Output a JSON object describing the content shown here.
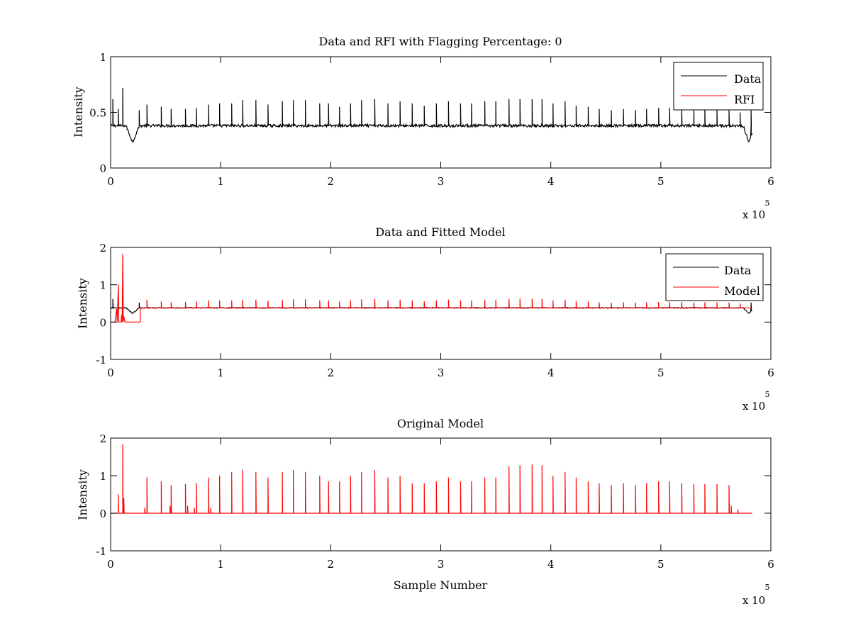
{
  "chart_data": [
    {
      "type": "line",
      "title": "Data and RFI with Flagging Percentage: 0",
      "xlabel": "",
      "ylabel": "Intensity",
      "xlim": [
        0,
        6
      ],
      "ylim": [
        0,
        1
      ],
      "x_multiplier": {
        "base": "x 10",
        "exponent": "5"
      },
      "xticks": [
        "0",
        "1",
        "2",
        "3",
        "4",
        "5",
        "6"
      ],
      "yticks": [
        "0",
        "0.5",
        "1"
      ],
      "legend": {
        "position": "top-right",
        "entries": [
          "Data",
          "RFI"
        ]
      },
      "series": [
        {
          "name": "Data",
          "color": "#000000",
          "baseline": 0.38,
          "x_end": 5.83,
          "dips": [
            {
              "x": 0.2,
              "depth": 0.23,
              "width": 0.06
            },
            {
              "x": 5.8,
              "depth": 0.23,
              "width": 0.05
            }
          ],
          "spikes": [
            {
              "x": 0.02,
              "y": 0.62
            },
            {
              "x": 0.07,
              "y": 0.53
            },
            {
              "x": 0.11,
              "y": 0.72
            },
            {
              "x": 0.26,
              "y": 0.52
            },
            {
              "x": 0.33,
              "y": 0.57
            },
            {
              "x": 0.46,
              "y": 0.55
            },
            {
              "x": 0.55,
              "y": 0.53
            },
            {
              "x": 0.68,
              "y": 0.53
            },
            {
              "x": 0.78,
              "y": 0.54
            },
            {
              "x": 0.89,
              "y": 0.57
            },
            {
              "x": 0.99,
              "y": 0.58
            },
            {
              "x": 1.1,
              "y": 0.58
            },
            {
              "x": 1.2,
              "y": 0.61
            },
            {
              "x": 1.32,
              "y": 0.61
            },
            {
              "x": 1.43,
              "y": 0.57
            },
            {
              "x": 1.56,
              "y": 0.6
            },
            {
              "x": 1.66,
              "y": 0.61
            },
            {
              "x": 1.77,
              "y": 0.61
            },
            {
              "x": 1.9,
              "y": 0.58
            },
            {
              "x": 1.98,
              "y": 0.58
            },
            {
              "x": 2.08,
              "y": 0.55
            },
            {
              "x": 2.18,
              "y": 0.58
            },
            {
              "x": 2.28,
              "y": 0.61
            },
            {
              "x": 2.4,
              "y": 0.62
            },
            {
              "x": 2.52,
              "y": 0.58
            },
            {
              "x": 2.63,
              "y": 0.6
            },
            {
              "x": 2.74,
              "y": 0.58
            },
            {
              "x": 2.85,
              "y": 0.56
            },
            {
              "x": 2.96,
              "y": 0.58
            },
            {
              "x": 3.07,
              "y": 0.6
            },
            {
              "x": 3.18,
              "y": 0.58
            },
            {
              "x": 3.28,
              "y": 0.58
            },
            {
              "x": 3.4,
              "y": 0.6
            },
            {
              "x": 3.5,
              "y": 0.6
            },
            {
              "x": 3.62,
              "y": 0.62
            },
            {
              "x": 3.72,
              "y": 0.62
            },
            {
              "x": 3.83,
              "y": 0.62
            },
            {
              "x": 3.92,
              "y": 0.62
            },
            {
              "x": 4.02,
              "y": 0.58
            },
            {
              "x": 4.13,
              "y": 0.6
            },
            {
              "x": 4.23,
              "y": 0.56
            },
            {
              "x": 4.34,
              "y": 0.55
            },
            {
              "x": 4.44,
              "y": 0.53
            },
            {
              "x": 4.55,
              "y": 0.52
            },
            {
              "x": 4.66,
              "y": 0.53
            },
            {
              "x": 4.77,
              "y": 0.52
            },
            {
              "x": 4.87,
              "y": 0.53
            },
            {
              "x": 4.98,
              "y": 0.54
            },
            {
              "x": 5.08,
              "y": 0.54
            },
            {
              "x": 5.19,
              "y": 0.53
            },
            {
              "x": 5.3,
              "y": 0.52
            },
            {
              "x": 5.4,
              "y": 0.53
            },
            {
              "x": 5.51,
              "y": 0.53
            },
            {
              "x": 5.62,
              "y": 0.52
            },
            {
              "x": 5.72,
              "y": 0.5
            },
            {
              "x": 5.82,
              "y": 0.52
            }
          ]
        },
        {
          "name": "RFI",
          "color": "#ff0000",
          "points": []
        }
      ]
    },
    {
      "type": "line",
      "title": "Data and Fitted Model",
      "xlabel": "",
      "ylabel": "Intensity",
      "xlim": [
        0,
        6
      ],
      "ylim": [
        -1,
        2
      ],
      "x_multiplier": {
        "base": "x 10",
        "exponent": "5"
      },
      "xticks": [
        "0",
        "1",
        "2",
        "3",
        "4",
        "5",
        "6"
      ],
      "yticks": [
        "-1",
        "0",
        "1",
        "2"
      ],
      "legend": {
        "position": "top-right",
        "entries": [
          "Data",
          "Model"
        ]
      },
      "series": [
        {
          "name": "Data",
          "color": "#000000",
          "baseline": 0.38,
          "x_end": 5.83,
          "dips": [
            {
              "x": 0.2,
              "depth": 0.23,
              "width": 0.06
            },
            {
              "x": 5.8,
              "depth": 0.23,
              "width": 0.05
            }
          ],
          "spikes": [
            {
              "x": 0.02,
              "y": 0.62
            },
            {
              "x": 0.11,
              "y": 0.72
            },
            {
              "x": 0.26,
              "y": 0.52
            },
            {
              "x": 5.82,
              "y": 0.52
            }
          ]
        },
        {
          "name": "Model",
          "color": "#ff0000",
          "points": [
            [
              0.0,
              0.0
            ],
            [
              0.04,
              0.0
            ],
            [
              0.055,
              0.35
            ],
            [
              0.06,
              0.0
            ],
            [
              0.07,
              1.0
            ],
            [
              0.075,
              0.0
            ],
            [
              0.095,
              0.0
            ],
            [
              0.1,
              0.2
            ],
            [
              0.105,
              0.0
            ],
            [
              0.11,
              1.83
            ],
            [
              0.115,
              0.0
            ],
            [
              0.12,
              0.15
            ],
            [
              0.13,
              0.0
            ],
            [
              0.27,
              0.0
            ],
            [
              0.27,
              0.38
            ]
          ],
          "baseline": 0.38,
          "baseline_start": 0.27,
          "baseline_end": 5.83,
          "spikes": [
            {
              "x": 0.33,
              "y": 0.6
            },
            {
              "x": 0.46,
              "y": 0.55
            },
            {
              "x": 0.55,
              "y": 0.53
            },
            {
              "x": 0.68,
              "y": 0.54
            },
            {
              "x": 0.78,
              "y": 0.55
            },
            {
              "x": 0.89,
              "y": 0.58
            },
            {
              "x": 0.99,
              "y": 0.58
            },
            {
              "x": 1.1,
              "y": 0.58
            },
            {
              "x": 1.2,
              "y": 0.6
            },
            {
              "x": 1.32,
              "y": 0.6
            },
            {
              "x": 1.43,
              "y": 0.57
            },
            {
              "x": 1.56,
              "y": 0.6
            },
            {
              "x": 1.66,
              "y": 0.61
            },
            {
              "x": 1.77,
              "y": 0.61
            },
            {
              "x": 1.9,
              "y": 0.58
            },
            {
              "x": 1.98,
              "y": 0.58
            },
            {
              "x": 2.08,
              "y": 0.55
            },
            {
              "x": 2.18,
              "y": 0.58
            },
            {
              "x": 2.28,
              "y": 0.61
            },
            {
              "x": 2.4,
              "y": 0.62
            },
            {
              "x": 2.52,
              "y": 0.58
            },
            {
              "x": 2.63,
              "y": 0.6
            },
            {
              "x": 2.74,
              "y": 0.58
            },
            {
              "x": 2.85,
              "y": 0.56
            },
            {
              "x": 2.96,
              "y": 0.58
            },
            {
              "x": 3.07,
              "y": 0.6
            },
            {
              "x": 3.18,
              "y": 0.58
            },
            {
              "x": 3.28,
              "y": 0.58
            },
            {
              "x": 3.4,
              "y": 0.6
            },
            {
              "x": 3.5,
              "y": 0.6
            },
            {
              "x": 3.62,
              "y": 0.62
            },
            {
              "x": 3.72,
              "y": 0.62
            },
            {
              "x": 3.83,
              "y": 0.62
            },
            {
              "x": 3.92,
              "y": 0.62
            },
            {
              "x": 4.02,
              "y": 0.58
            },
            {
              "x": 4.13,
              "y": 0.6
            },
            {
              "x": 4.23,
              "y": 0.56
            },
            {
              "x": 4.34,
              "y": 0.55
            },
            {
              "x": 4.44,
              "y": 0.53
            },
            {
              "x": 4.55,
              "y": 0.52
            },
            {
              "x": 4.66,
              "y": 0.53
            },
            {
              "x": 4.77,
              "y": 0.52
            },
            {
              "x": 4.87,
              "y": 0.53
            },
            {
              "x": 4.98,
              "y": 0.54
            },
            {
              "x": 5.08,
              "y": 0.54
            },
            {
              "x": 5.19,
              "y": 0.53
            },
            {
              "x": 5.3,
              "y": 0.52
            },
            {
              "x": 5.4,
              "y": 0.53
            },
            {
              "x": 5.51,
              "y": 0.53
            },
            {
              "x": 5.62,
              "y": 0.52
            },
            {
              "x": 5.72,
              "y": 0.5
            }
          ]
        }
      ]
    },
    {
      "type": "line",
      "title": "Original Model",
      "xlabel": "Sample Number",
      "ylabel": "Intensity",
      "xlim": [
        0,
        6
      ],
      "ylim": [
        -1,
        2
      ],
      "x_multiplier": {
        "base": "x 10",
        "exponent": "5"
      },
      "xticks": [
        "0",
        "1",
        "2",
        "3",
        "4",
        "5",
        "6"
      ],
      "yticks": [
        "-1",
        "0",
        "1",
        "2"
      ],
      "series": [
        {
          "name": "",
          "color": "#ff0000",
          "baseline": 0.0,
          "x_start": 0.0,
          "x_end": 5.83,
          "spikes": [
            {
              "x": 0.07,
              "y": 0.5
            },
            {
              "x": 0.11,
              "y": 1.83
            },
            {
              "x": 0.12,
              "y": 0.4
            },
            {
              "x": 0.31,
              "y": 0.15
            },
            {
              "x": 0.33,
              "y": 0.95
            },
            {
              "x": 0.46,
              "y": 0.85
            },
            {
              "x": 0.55,
              "y": 0.75
            },
            {
              "x": 0.54,
              "y": 0.2
            },
            {
              "x": 0.68,
              "y": 0.78
            },
            {
              "x": 0.7,
              "y": 0.2
            },
            {
              "x": 0.76,
              "y": 0.15
            },
            {
              "x": 0.78,
              "y": 0.8
            },
            {
              "x": 0.89,
              "y": 0.95
            },
            {
              "x": 0.91,
              "y": 0.15
            },
            {
              "x": 0.99,
              "y": 1.0
            },
            {
              "x": 1.1,
              "y": 1.1
            },
            {
              "x": 1.2,
              "y": 1.16
            },
            {
              "x": 1.32,
              "y": 1.1
            },
            {
              "x": 1.43,
              "y": 0.95
            },
            {
              "x": 1.56,
              "y": 1.1
            },
            {
              "x": 1.66,
              "y": 1.15
            },
            {
              "x": 1.77,
              "y": 1.1
            },
            {
              "x": 1.9,
              "y": 1.0
            },
            {
              "x": 1.98,
              "y": 0.85
            },
            {
              "x": 2.08,
              "y": 0.85
            },
            {
              "x": 2.18,
              "y": 1.0
            },
            {
              "x": 2.28,
              "y": 1.1
            },
            {
              "x": 2.4,
              "y": 1.15
            },
            {
              "x": 2.52,
              "y": 0.95
            },
            {
              "x": 2.63,
              "y": 1.0
            },
            {
              "x": 2.74,
              "y": 0.8
            },
            {
              "x": 2.85,
              "y": 0.8
            },
            {
              "x": 2.96,
              "y": 0.85
            },
            {
              "x": 3.07,
              "y": 0.95
            },
            {
              "x": 3.18,
              "y": 0.85
            },
            {
              "x": 3.28,
              "y": 0.85
            },
            {
              "x": 3.4,
              "y": 0.95
            },
            {
              "x": 3.5,
              "y": 0.95
            },
            {
              "x": 3.62,
              "y": 1.25
            },
            {
              "x": 3.72,
              "y": 1.28
            },
            {
              "x": 3.83,
              "y": 1.3
            },
            {
              "x": 3.92,
              "y": 1.28
            },
            {
              "x": 4.02,
              "y": 1.0
            },
            {
              "x": 4.13,
              "y": 1.1
            },
            {
              "x": 4.23,
              "y": 0.95
            },
            {
              "x": 4.34,
              "y": 0.85
            },
            {
              "x": 4.44,
              "y": 0.8
            },
            {
              "x": 4.55,
              "y": 0.75
            },
            {
              "x": 4.66,
              "y": 0.8
            },
            {
              "x": 4.77,
              "y": 0.75
            },
            {
              "x": 4.87,
              "y": 0.8
            },
            {
              "x": 4.98,
              "y": 0.85
            },
            {
              "x": 5.08,
              "y": 0.85
            },
            {
              "x": 5.19,
              "y": 0.8
            },
            {
              "x": 5.3,
              "y": 0.78
            },
            {
              "x": 5.4,
              "y": 0.78
            },
            {
              "x": 5.51,
              "y": 0.78
            },
            {
              "x": 5.62,
              "y": 0.75
            },
            {
              "x": 5.64,
              "y": 0.2
            },
            {
              "x": 5.7,
              "y": 0.1
            }
          ]
        }
      ]
    }
  ]
}
